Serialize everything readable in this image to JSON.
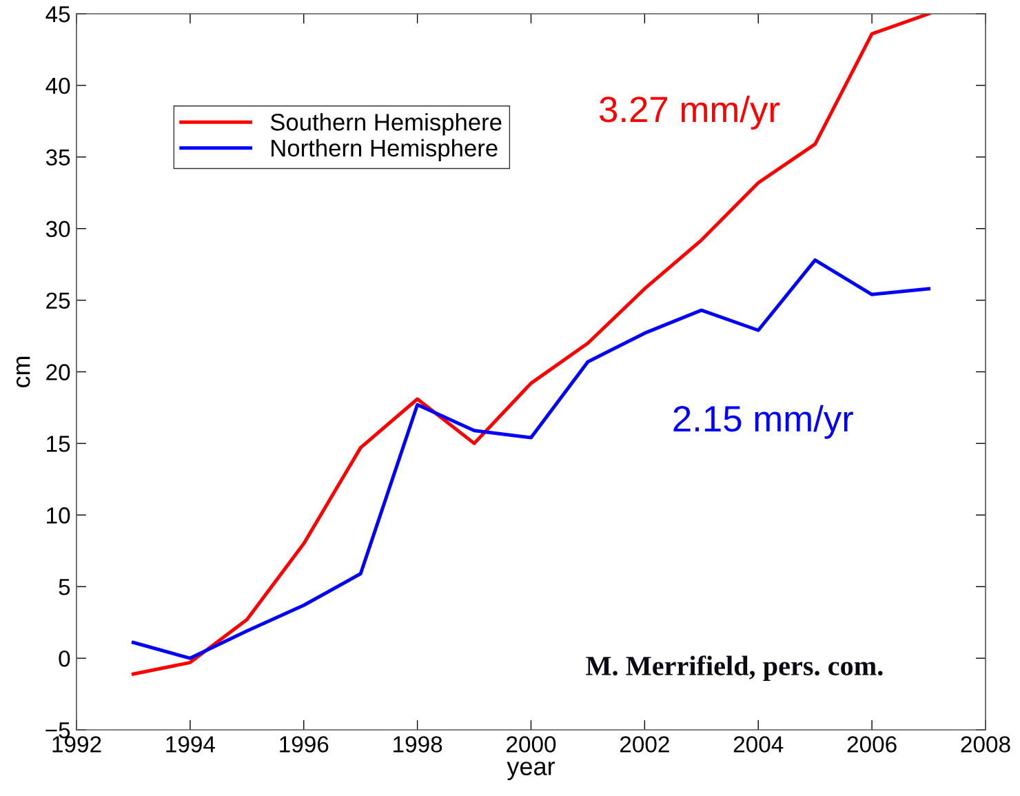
{
  "chart_data": {
    "type": "line",
    "x": [
      1993,
      1994,
      1995,
      1996,
      1997,
      1998,
      1999,
      2000,
      2001,
      2002,
      2003,
      2004,
      2005,
      2006,
      2007
    ],
    "series": [
      {
        "name": "Southern Hemisphere",
        "color": "#ff0000",
        "values": [
          -1.1,
          -0.3,
          2.7,
          8.0,
          14.7,
          18.1,
          15.0,
          19.2,
          22.0,
          25.8,
          29.2,
          33.2,
          35.9,
          43.6,
          45.0
        ]
      },
      {
        "name": "Northern Hemisphere",
        "color": "#0000ff",
        "values": [
          1.1,
          0.0,
          1.9,
          3.7,
          5.9,
          17.7,
          15.9,
          15.4,
          20.7,
          22.7,
          24.3,
          22.9,
          27.8,
          25.4,
          25.8
        ]
      }
    ],
    "xlabel": "year",
    "ylabel": "cm",
    "xlim": [
      1992,
      2008
    ],
    "xticks": [
      1992,
      1994,
      1996,
      1998,
      2000,
      2002,
      2004,
      2006,
      2008
    ],
    "ylim": [
      -5,
      45
    ],
    "yticks": [
      {
        "value": -5,
        "label": "−5"
      },
      0,
      5,
      10,
      15,
      20,
      25,
      30,
      35,
      40,
      45
    ],
    "annotations": [
      "3.27 mm/yr",
      "2.15 mm/yr",
      "M. Merrifield, pers. com."
    ],
    "legend": "top left",
    "grid": false,
    "marker": "none",
    "line_style": "solid"
  }
}
